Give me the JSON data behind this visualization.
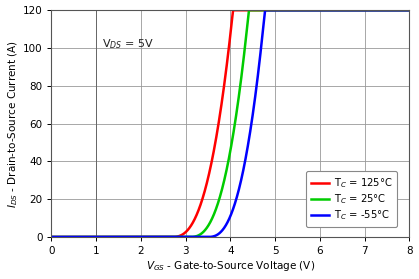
{
  "xlim": [
    0,
    8
  ],
  "ylim": [
    0,
    120
  ],
  "xticks": [
    0,
    1,
    2,
    3,
    4,
    5,
    6,
    7,
    8
  ],
  "yticks": [
    0,
    20,
    40,
    60,
    80,
    100,
    120
  ],
  "legend_colors": [
    "#ff0000",
    "#00cc00",
    "#0000ff"
  ],
  "background_color": "#ffffff",
  "grid_color": "#999999",
  "annotation": "V$_{DS}$ = 5V",
  "curves": [
    {
      "label": "T$_C$ = 125°C",
      "color": "#ff0000",
      "vth": 2.7,
      "k": 55.0,
      "exp": 2.55
    },
    {
      "label": "T$_C$ = 25°C",
      "color": "#00cc00",
      "vth": 3.1,
      "k": 60.0,
      "exp": 2.55
    },
    {
      "label": "T$_C$ = -55°C",
      "color": "#0000ff",
      "vth": 3.5,
      "k": 65.0,
      "exp": 2.55
    }
  ]
}
